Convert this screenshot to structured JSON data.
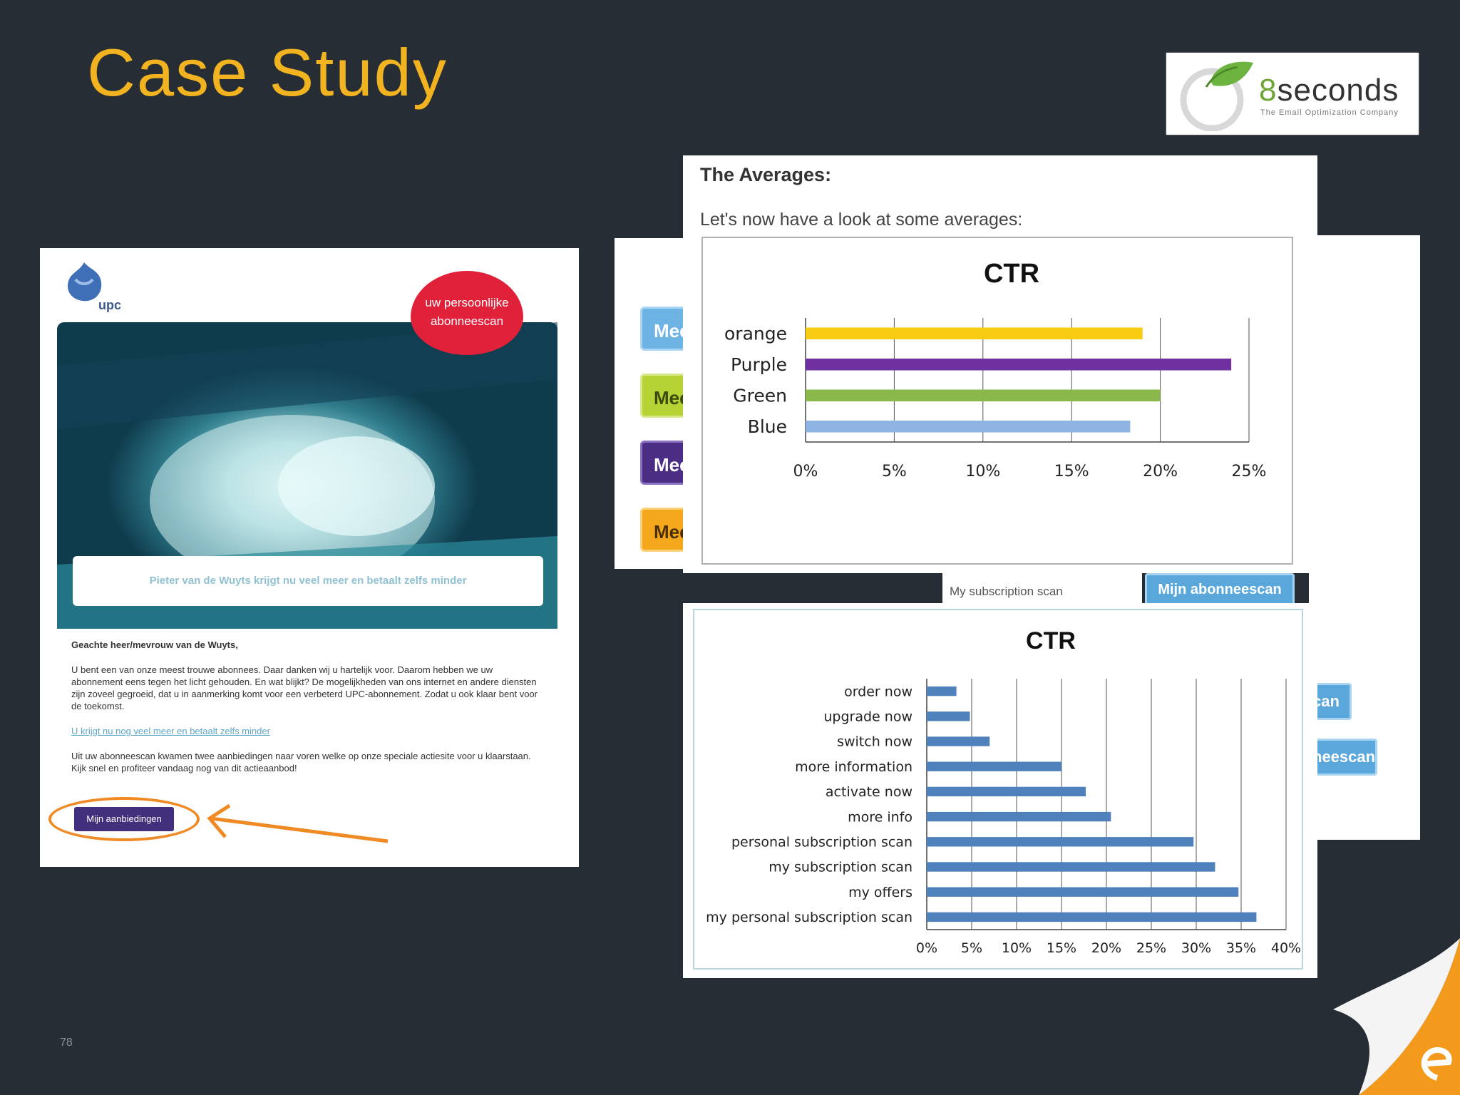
{
  "slide": {
    "title": "Case Study",
    "page_number": "78"
  },
  "logo": {
    "digit": "8",
    "word": "seconds",
    "tagline": "The Email Optimization Company"
  },
  "email": {
    "brand": "upc",
    "badge_line1": "uw persoonlijke",
    "badge_line2": "abonneescan",
    "strip_text": "Pieter van de Wuyts krijgt nu veel meer en betaalt zelfs minder",
    "greeting": "Geachte heer/mevrouw van de Wuyts,",
    "paragraph1": "U bent een van onze meest trouwe abonnees. Daar danken wij u hartelijk voor. Daarom hebben we uw abonnement eens tegen het licht gehouden. En wat blijkt? De mogelijkheden van ons internet en andere diensten zijn zoveel gegroeid, dat u in aanmerking komt voor een verbeterd UPC-abonnement. Zodat u ook klaar bent voor de toekomst.",
    "link_text": "U krijgt nu nog veel meer en betaalt zelfs minder",
    "paragraph2": "Uit uw abonneescan kwamen twee aanbiedingen naar voren welke op onze speciale actiesite voor u klaarstaan. Kijk snel en profiteer vandaag nog van dit actieaanbod!",
    "cta_label": "Mijn aanbiedingen"
  },
  "side_buttons": {
    "label": "Mee",
    "colors": [
      "#6db3e4",
      "#b5d334",
      "#4b2e83",
      "#f6a81c"
    ]
  },
  "averages": {
    "heading": "The Averages:",
    "subheading": "Let's now have a look at some averages:"
  },
  "subscription": {
    "label": "My subscription scan",
    "button_label": "Mijn abonneescan",
    "partial_button_1": "can",
    "partial_button_2": "neescan"
  },
  "chart_data": [
    {
      "type": "bar",
      "orientation": "horizontal",
      "title": "CTR",
      "categories": [
        "orange",
        "Purple",
        "Green",
        "Blue"
      ],
      "values": [
        19,
        24,
        20,
        18.3
      ],
      "colors": [
        "#f7cc12",
        "#7030a0",
        "#8ab84b",
        "#8db4e2"
      ],
      "xlim": [
        0,
        25
      ],
      "x_ticks": [
        "0%",
        "5%",
        "10%",
        "15%",
        "20%",
        "25%"
      ],
      "grid": true
    },
    {
      "type": "bar",
      "orientation": "horizontal",
      "title": "CTR",
      "categories": [
        "order now",
        "upgrade now",
        "switch now",
        "more information",
        "activate now",
        "more info",
        "personal subscription scan",
        "my subscription scan",
        "my offers",
        "my personal subscription scan"
      ],
      "values": [
        3.3,
        4.8,
        7,
        15,
        17.7,
        20.5,
        29.7,
        32.1,
        34.7,
        36.7
      ],
      "color": "#4f81bd",
      "xlim": [
        0,
        40
      ],
      "x_ticks": [
        "0%",
        "5%",
        "10%",
        "15%",
        "20%",
        "25%",
        "30%",
        "35%",
        "40%"
      ],
      "grid": true
    }
  ]
}
